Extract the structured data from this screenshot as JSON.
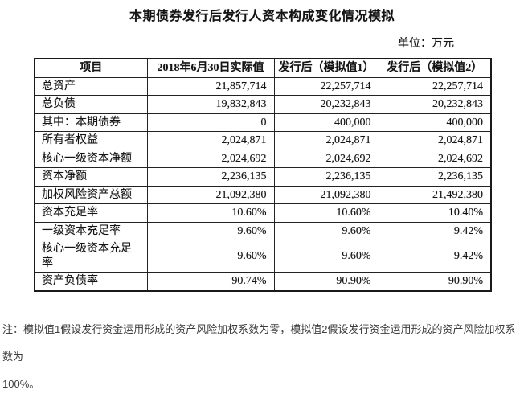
{
  "title": "本期债券发行后发行人资本构成变化情况模拟",
  "unit_label": "单位：万元",
  "table": {
    "headers": {
      "item": "项目",
      "actual": "2018年6月30日实际值",
      "sim1": "发行后（模拟值1）",
      "sim2": "发行后（模拟值2）"
    },
    "rows": [
      {
        "label": "总资产",
        "actual": "21,857,714",
        "sim1": "22,257,714",
        "sim2": "22,257,714"
      },
      {
        "label": "总负债",
        "actual": "19,832,843",
        "sim1": "20,232,843",
        "sim2": "20,232,843"
      },
      {
        "label": "其中：本期债券",
        "actual": "0",
        "sim1": "400,000",
        "sim2": "400,000"
      },
      {
        "label": "所有者权益",
        "actual": "2,024,871",
        "sim1": "2,024,871",
        "sim2": "2,024,871"
      },
      {
        "label": "核心一级资本净额",
        "actual": "2,024,692",
        "sim1": "2,024,692",
        "sim2": "2,024,692"
      },
      {
        "label": "资本净额",
        "actual": "2,236,135",
        "sim1": "2,236,135",
        "sim2": "2,236,135"
      },
      {
        "label": "加权风险资产总额",
        "actual": "21,092,380",
        "sim1": "21,092,380",
        "sim2": "21,492,380"
      },
      {
        "label": "资本充足率",
        "actual": "10.60%",
        "sim1": "10.60%",
        "sim2": "10.40%"
      },
      {
        "label": "一级资本充足率",
        "actual": "9.60%",
        "sim1": "9.60%",
        "sim2": "9.42%"
      },
      {
        "label": "核心一级资本充足率",
        "actual": "9.60%",
        "sim1": "9.60%",
        "sim2": "9.42%"
      },
      {
        "label": "资产负债率",
        "actual": "90.74%",
        "sim1": "90.90%",
        "sim2": "90.90%"
      }
    ]
  },
  "note": {
    "line1": "注：模拟值1假设发行资金运用形成的资产风险加权系数为零，模拟值2假设发行资金运用形成的资产风险加权系数为",
    "line2": "100%。"
  }
}
